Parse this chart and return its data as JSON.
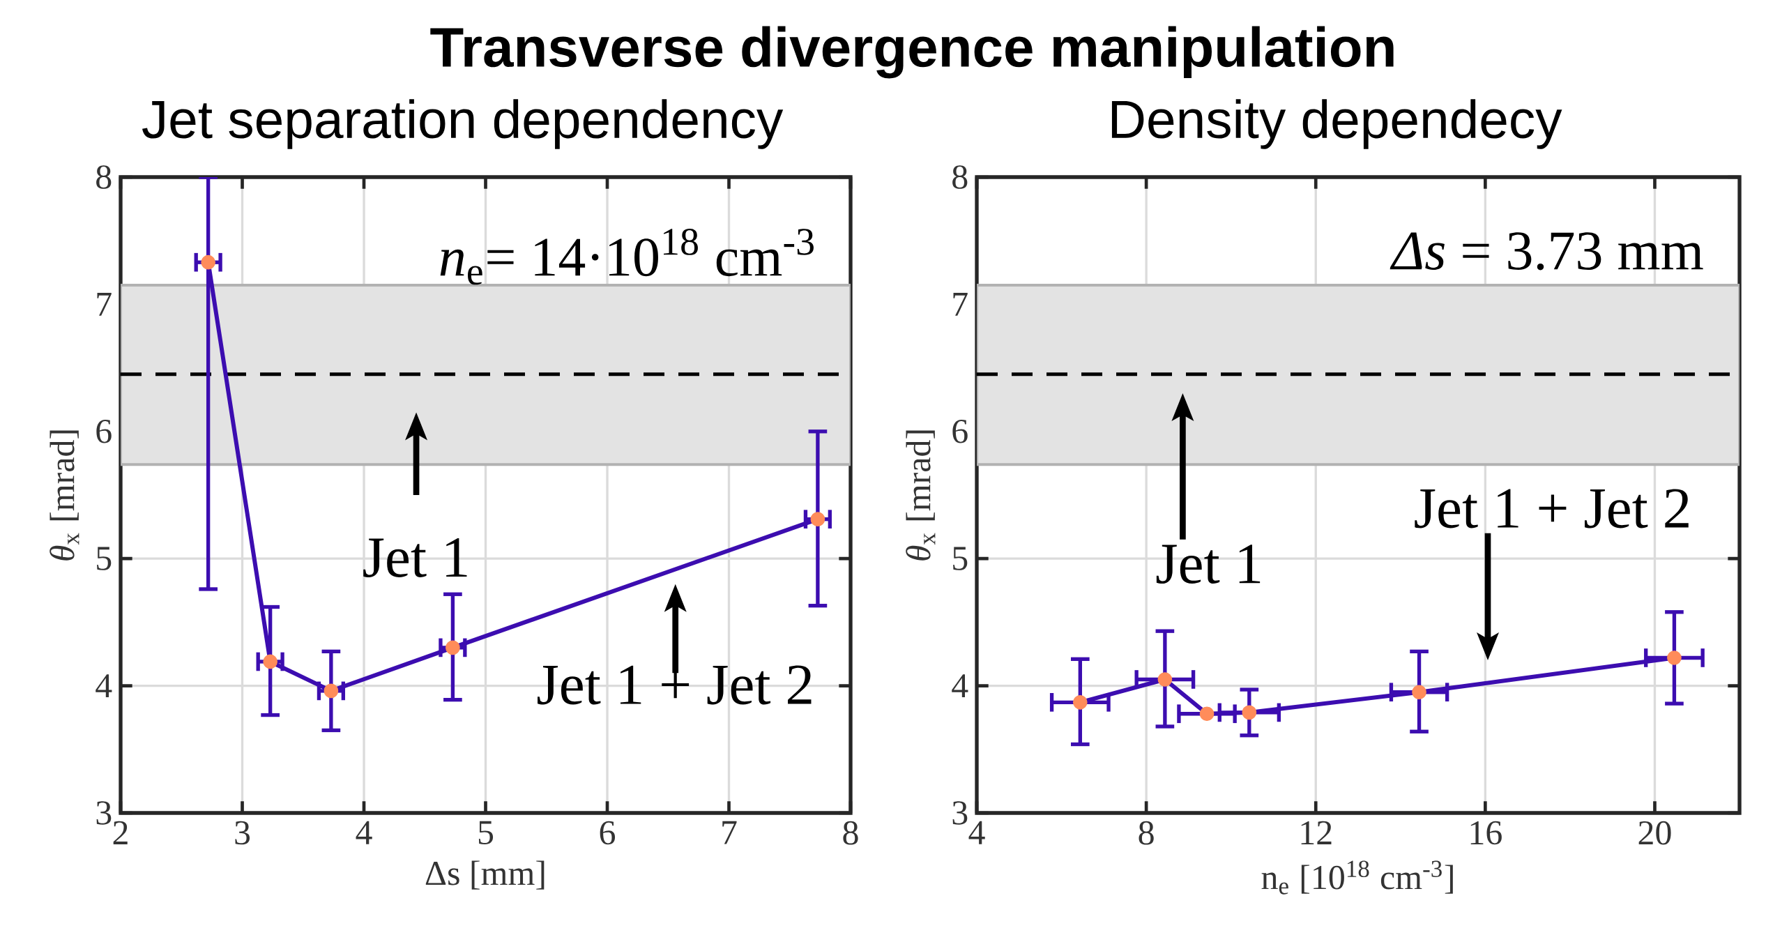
{
  "chart_data": [
    {
      "type": "line",
      "title": "Transverse divergence manipulation",
      "subtitle": "Jet separation dependency",
      "xlabel": "Δs [mm]",
      "ylabel": "*θ*$_{x}$ [mrad]",
      "series": [
        {
          "color": "#3c0db0",
          "colors": [
            "#ff8c5a",
            "#ff8c5a",
            "#ff8c5a",
            "#ff8c5a",
            "#ff8c5a"
          ],
          "x": [
            2.72,
            3.23,
            3.73,
            4.73,
            7.73
          ],
          "values": [
            7.33,
            4.19,
            3.96,
            4.3,
            5.31
          ],
          "errors": [
            [
              4.76,
              8.0
            ],
            [
              3.77,
              4.62
            ],
            [
              3.65,
              4.27
            ],
            [
              3.89,
              4.72
            ],
            [
              4.63,
              6.0
            ]
          ],
          "xerrors": [
            0.1,
            0.1,
            0.1,
            0.1,
            0.1
          ]
        }
      ],
      "xlim": [
        2,
        8
      ],
      "xticks": [
        2,
        3,
        4,
        5,
        6,
        7,
        8
      ],
      "ylim": [
        3,
        8
      ],
      "yticks": [
        3,
        4,
        5,
        6,
        7,
        8
      ],
      "grid": true,
      "marker": "circle",
      "line_style": "solid",
      "bands": [
        {
          "axis": "y",
          "from": 5.74,
          "to": 7.15,
          "color": "#e3e3e3"
        }
      ],
      "ref_lines": [
        {
          "axis": "y",
          "value": 6.45,
          "color": "#000000",
          "line_style": "dashed"
        }
      ],
      "annotations": [
        "*n*$_{e}$= 14·10$^{18}$ cm$^{-3}$",
        "Jet 1",
        "Jet 1 + Jet 2"
      ]
    },
    {
      "type": "line",
      "subtitle": "Density dependecy",
      "xlabel": "n$_{e}$ [10$^{18}$ cm$^{-3}$]",
      "ylabel": "*θ*$_{x}$ [mrad]",
      "series": [
        {
          "color": "#3c0db0",
          "colors": [
            "#ff8c5a",
            "#ff8c5a",
            "#ff8c5a",
            "#ff8c5a",
            "#ff8c5a",
            "#ff8c5a"
          ],
          "x": [
            6.44,
            8.44,
            9.43,
            10.43,
            14.44,
            20.46
          ],
          "values": [
            3.87,
            4.05,
            3.78,
            3.79,
            3.95,
            4.22
          ],
          "errors": [
            [
              3.54,
              4.21
            ],
            [
              3.68,
              4.43
            ],
            null,
            [
              3.61,
              3.97
            ],
            [
              3.64,
              4.27
            ],
            [
              3.86,
              4.58
            ]
          ],
          "xerrors": [
            0.67,
            0.67,
            0.66,
            0.7,
            0.66,
            0.67
          ]
        }
      ],
      "xlim": [
        4,
        22
      ],
      "xticks": [
        4,
        8,
        12,
        16,
        20
      ],
      "ylim": [
        3,
        8
      ],
      "yticks": [
        3,
        4,
        5,
        6,
        7,
        8
      ],
      "grid": true,
      "marker": "circle",
      "line_style": "solid",
      "bands": [
        {
          "axis": "y",
          "from": 5.74,
          "to": 7.15,
          "color": "#e3e3e3"
        }
      ],
      "ref_lines": [
        {
          "axis": "y",
          "value": 6.45,
          "color": "#000000",
          "line_style": "dashed"
        }
      ],
      "annotations": [
        "*Δs* = 3.73 mm",
        "Jet 1",
        "Jet 1 + Jet 2"
      ]
    }
  ]
}
